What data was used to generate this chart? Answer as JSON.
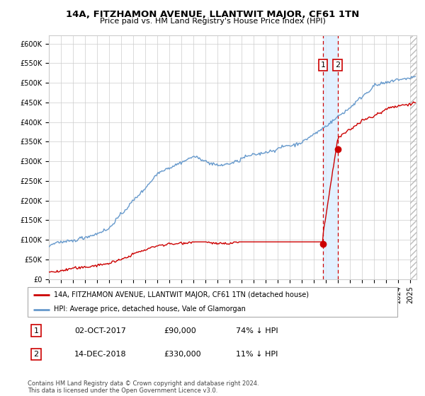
{
  "title": "14A, FITZHAMON AVENUE, LLANTWIT MAJOR, CF61 1TN",
  "subtitle": "Price paid vs. HM Land Registry's House Price Index (HPI)",
  "xlim_start": 1995.0,
  "xlim_end": 2025.5,
  "ylim_min": 0,
  "ylim_max": 620000,
  "yticks": [
    0,
    50000,
    100000,
    150000,
    200000,
    250000,
    300000,
    350000,
    400000,
    450000,
    500000,
    550000,
    600000
  ],
  "ytick_labels": [
    "£0",
    "£50K",
    "£100K",
    "£150K",
    "£200K",
    "£250K",
    "£300K",
    "£350K",
    "£400K",
    "£450K",
    "£500K",
    "£550K",
    "£600K"
  ],
  "hpi_color": "#6699cc",
  "price_color": "#cc0000",
  "point1_x": 2017.75,
  "point1_y": 90000,
  "point2_x": 2018.95,
  "point2_y": 330000,
  "annotation_box_color": "#cc0000",
  "sale1_label": "1",
  "sale2_label": "2",
  "legend_line1": "14A, FITZHAMON AVENUE, LLANTWIT MAJOR, CF61 1TN (detached house)",
  "legend_line2": "HPI: Average price, detached house, Vale of Glamorgan",
  "table_row1": [
    "1",
    "02-OCT-2017",
    "£90,000",
    "74% ↓ HPI"
  ],
  "table_row2": [
    "2",
    "14-DEC-2018",
    "£330,000",
    "11% ↓ HPI"
  ],
  "footnote": "Contains HM Land Registry data © Crown copyright and database right 2024.\nThis data is licensed under the Open Government Licence v3.0.",
  "background_color": "#ffffff",
  "plot_bg_color": "#ffffff",
  "grid_color": "#cccccc",
  "stripe_color": "#ddeeff"
}
